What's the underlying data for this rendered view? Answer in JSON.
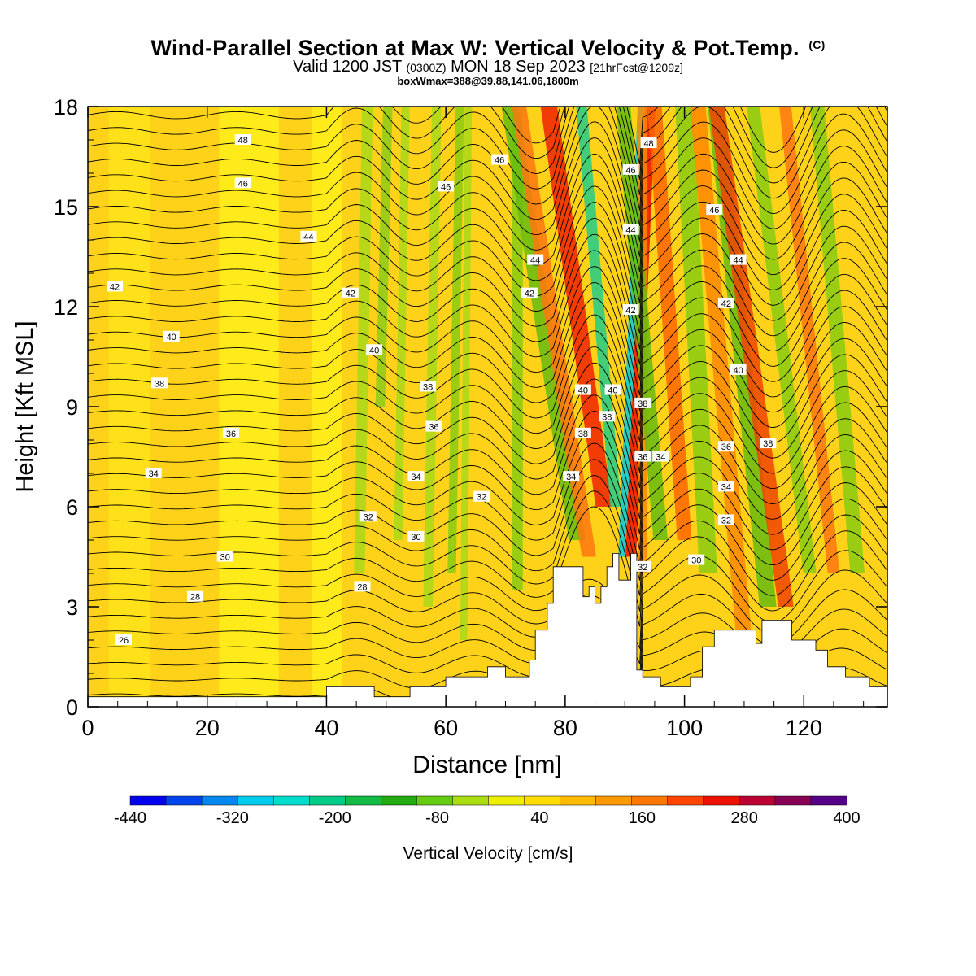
{
  "title": {
    "main": "Wind-Parallel Section at Max W: Vertical Velocity & Pot.Temp.",
    "copyright": "(C)",
    "valid_prefix": "Valid 1200 JST",
    "valid_z": "(0300Z)",
    "valid_date": "MON 18 Sep 2023",
    "forecast": "[21hrFcst@1209z]",
    "boxinfo": "boxWmax=388@39.88,141.06,1800m"
  },
  "chart_data": {
    "type": "heatmap",
    "xlabel": "Distance [nm]",
    "ylabel": "Height [Kft MSL]",
    "xlim": [
      0,
      134
    ],
    "ylim": [
      0,
      18
    ],
    "x_ticks": [
      "0",
      "20",
      "40",
      "60",
      "80",
      "100",
      "120"
    ],
    "y_ticks": [
      "0",
      "3",
      "6",
      "9",
      "12",
      "15",
      "18"
    ],
    "colorbar": {
      "label": "Vertical Velocity [cm/s]",
      "range": [
        -440,
        400
      ],
      "tick_labels": [
        "-440",
        "-320",
        "-200",
        "-80",
        "40",
        "160",
        "280",
        "400"
      ],
      "colors": [
        "#0000ee",
        "#0044ee",
        "#0088ee",
        "#00ccee",
        "#00ddcc",
        "#00cc88",
        "#11bb44",
        "#22aa11",
        "#66cc11",
        "#aadd11",
        "#eeee00",
        "#ffdd00",
        "#ffbb00",
        "#ff9900",
        "#ff7700",
        "#ff4400",
        "#ee1100",
        "#bb0033",
        "#880055",
        "#550088"
      ]
    },
    "terrain": [
      [
        0,
        0.3
      ],
      [
        40,
        0.3
      ],
      [
        40,
        0.6
      ],
      [
        48,
        0.6
      ],
      [
        48,
        0.3
      ],
      [
        54,
        0.3
      ],
      [
        54,
        0.6
      ],
      [
        60,
        0.6
      ],
      [
        60,
        0.9
      ],
      [
        67,
        0.9
      ],
      [
        67,
        1.2
      ],
      [
        70,
        1.2
      ],
      [
        70,
        0.9
      ],
      [
        74,
        0.9
      ],
      [
        74,
        1.4
      ],
      [
        75,
        1.4
      ],
      [
        75,
        2.3
      ],
      [
        77,
        2.3
      ],
      [
        77,
        3.1
      ],
      [
        78,
        3.1
      ],
      [
        78,
        4.2
      ],
      [
        83,
        4.2
      ],
      [
        83,
        3.3
      ],
      [
        84,
        3.3
      ],
      [
        84,
        3.6
      ],
      [
        85,
        3.6
      ],
      [
        85,
        3.1
      ],
      [
        86,
        3.1
      ],
      [
        86,
        3.6
      ],
      [
        87,
        3.6
      ],
      [
        87,
        4.2
      ],
      [
        88,
        4.2
      ],
      [
        88,
        4.6
      ],
      [
        89,
        4.6
      ],
      [
        89,
        3.8
      ],
      [
        91,
        3.8
      ],
      [
        91,
        4.6
      ],
      [
        92,
        4.6
      ],
      [
        92,
        1.1
      ],
      [
        93,
        1.1
      ],
      [
        93,
        0.9
      ],
      [
        96,
        0.9
      ],
      [
        96,
        0.6
      ],
      [
        101,
        0.6
      ],
      [
        101,
        0.9
      ],
      [
        103,
        0.9
      ],
      [
        103,
        1.8
      ],
      [
        105,
        1.8
      ],
      [
        105,
        2.3
      ],
      [
        112,
        2.3
      ],
      [
        112,
        1.9
      ],
      [
        113,
        1.9
      ],
      [
        113,
        2.6
      ],
      [
        118,
        2.6
      ],
      [
        118,
        2.0
      ],
      [
        122,
        2.0
      ],
      [
        122,
        1.7
      ],
      [
        124,
        1.7
      ],
      [
        124,
        1.2
      ],
      [
        127,
        1.2
      ],
      [
        127,
        0.9
      ],
      [
        131,
        0.9
      ],
      [
        131,
        0.6
      ],
      [
        134,
        0.6
      ]
    ],
    "theta_labels": [
      {
        "text": "48",
        "x": 26,
        "y": 17.0
      },
      {
        "text": "46",
        "x": 26,
        "y": 15.7
      },
      {
        "text": "44",
        "x": 37,
        "y": 14.1
      },
      {
        "text": "42",
        "x": 4.5,
        "y": 12.6
      },
      {
        "text": "40",
        "x": 14,
        "y": 11.1
      },
      {
        "text": "38",
        "x": 12,
        "y": 9.7
      },
      {
        "text": "36",
        "x": 24,
        "y": 8.2
      },
      {
        "text": "34",
        "x": 11,
        "y": 7.0
      },
      {
        "text": "30",
        "x": 23,
        "y": 4.5
      },
      {
        "text": "28",
        "x": 18,
        "y": 3.3
      },
      {
        "text": "26",
        "x": 6,
        "y": 2.0
      },
      {
        "text": "46",
        "x": 60,
        "y": 15.6
      },
      {
        "text": "46",
        "x": 69,
        "y": 16.4
      },
      {
        "text": "42",
        "x": 44,
        "y": 12.4
      },
      {
        "text": "40",
        "x": 48,
        "y": 10.7
      },
      {
        "text": "38",
        "x": 57,
        "y": 9.6
      },
      {
        "text": "36",
        "x": 58,
        "y": 8.4
      },
      {
        "text": "34",
        "x": 55,
        "y": 6.9
      },
      {
        "text": "32",
        "x": 47,
        "y": 5.7
      },
      {
        "text": "30",
        "x": 55,
        "y": 5.1
      },
      {
        "text": "28",
        "x": 46,
        "y": 3.6
      },
      {
        "text": "32",
        "x": 66,
        "y": 6.3
      },
      {
        "text": "44",
        "x": 75,
        "y": 13.4
      },
      {
        "text": "42",
        "x": 74,
        "y": 12.4
      },
      {
        "text": "40",
        "x": 83,
        "y": 9.5
      },
      {
        "text": "38",
        "x": 83,
        "y": 8.2
      },
      {
        "text": "34",
        "x": 81,
        "y": 6.9
      },
      {
        "text": "48",
        "x": 94,
        "y": 16.9
      },
      {
        "text": "46",
        "x": 91,
        "y": 16.1
      },
      {
        "text": "44",
        "x": 91,
        "y": 14.3
      },
      {
        "text": "42",
        "x": 91,
        "y": 11.9
      },
      {
        "text": "40",
        "x": 88,
        "y": 9.5
      },
      {
        "text": "38",
        "x": 87,
        "y": 8.7
      },
      {
        "text": "38",
        "x": 93,
        "y": 9.1
      },
      {
        "text": "36",
        "x": 93,
        "y": 7.5
      },
      {
        "text": "34",
        "x": 96,
        "y": 7.5
      },
      {
        "text": "32",
        "x": 93,
        "y": 4.2
      },
      {
        "text": "46",
        "x": 105,
        "y": 14.9
      },
      {
        "text": "44",
        "x": 109,
        "y": 13.4
      },
      {
        "text": "42",
        "x": 107,
        "y": 12.1
      },
      {
        "text": "40",
        "x": 109,
        "y": 10.1
      },
      {
        "text": "38",
        "x": 114,
        "y": 7.9
      },
      {
        "text": "36",
        "x": 107,
        "y": 7.8
      },
      {
        "text": "34",
        "x": 107,
        "y": 6.6
      },
      {
        "text": "32",
        "x": 107,
        "y": 5.6
      },
      {
        "text": "30",
        "x": 102,
        "y": 4.4
      }
    ]
  }
}
